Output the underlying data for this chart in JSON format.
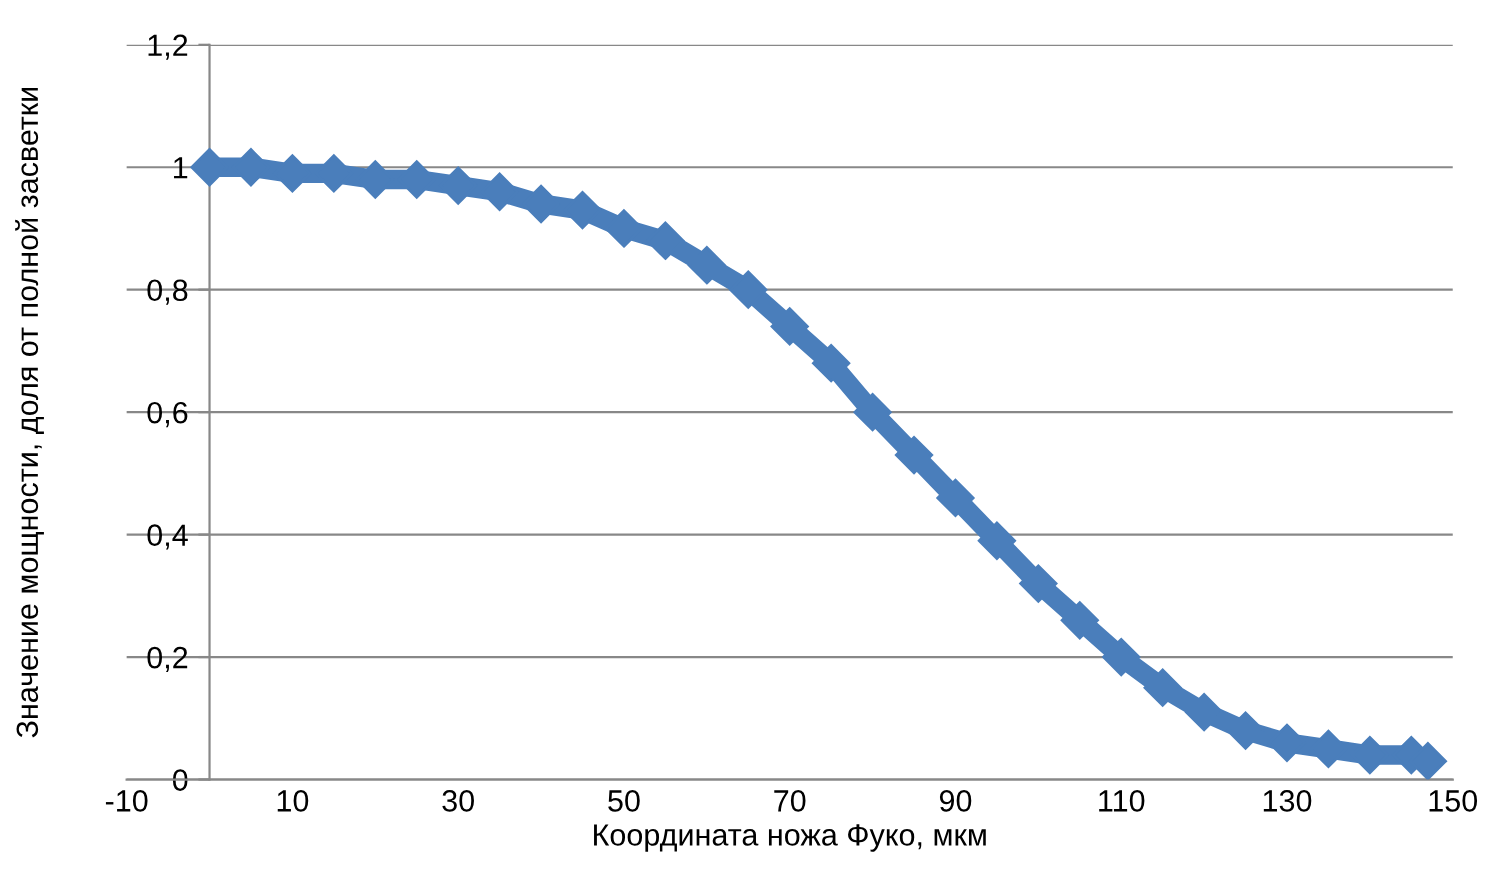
{
  "chart_data": {
    "type": "line",
    "xlabel": "Координата ножа Фуко, мкм",
    "ylabel": "Значение мощности, доля от полной засветки",
    "x": [
      0,
      5,
      10,
      15,
      20,
      25,
      30,
      35,
      40,
      45,
      50,
      55,
      60,
      65,
      70,
      75,
      80,
      85,
      90,
      95,
      100,
      105,
      110,
      115,
      120,
      125,
      130,
      135,
      140,
      145,
      147
    ],
    "series": [
      {
        "color": "#4a7ebb",
        "values": [
          1.0,
          1.0,
          0.99,
          0.99,
          0.98,
          0.98,
          0.97,
          0.96,
          0.94,
          0.93,
          0.9,
          0.88,
          0.84,
          0.8,
          0.74,
          0.68,
          0.6,
          0.53,
          0.46,
          0.39,
          0.32,
          0.26,
          0.2,
          0.15,
          0.11,
          0.08,
          0.06,
          0.05,
          0.04,
          0.04,
          0.03
        ]
      }
    ],
    "xlim": [
      -10,
      150
    ],
    "xticks": [
      -10,
      10,
      30,
      50,
      70,
      90,
      110,
      130,
      150
    ],
    "ylim": [
      0,
      1.2
    ],
    "yticks": [
      0,
      {
        "value": 0.2,
        "label": "0,2"
      },
      {
        "value": 0.4,
        "label": "0,4"
      },
      {
        "value": 0.6,
        "label": "0,6"
      },
      {
        "value": 0.8,
        "label": "0,8"
      },
      1,
      {
        "value": 1.2,
        "label": "1,2"
      }
    ],
    "grid": "y",
    "marker": "diamond",
    "line_style": "solid"
  }
}
